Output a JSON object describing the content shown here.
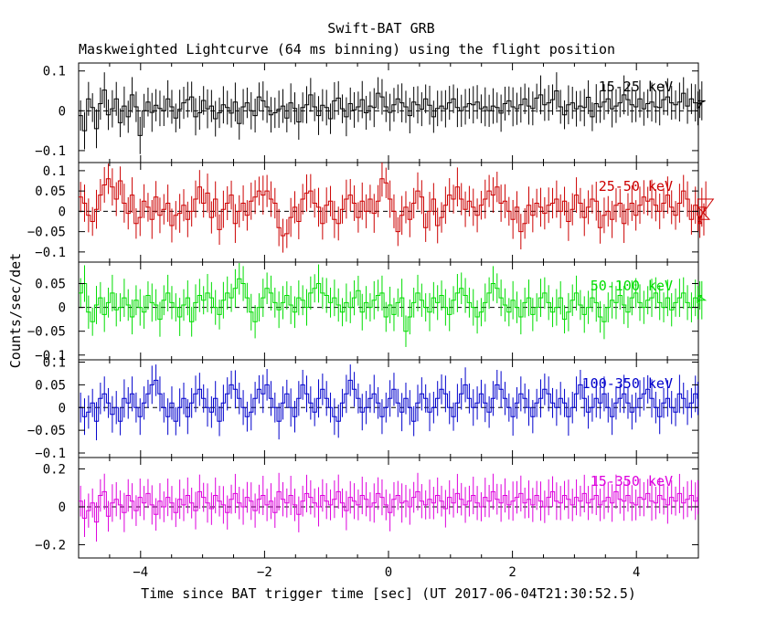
{
  "chart_data": {
    "type": "line",
    "title": "Swift-BAT GRB",
    "subtitle": "Maskweighted Lightcurve (64 ms binning) using the flight position",
    "xlabel": "Time since BAT trigger time [sec] (UT 2017-06-04T21:30:52.5)",
    "ylabel": "Counts/sec/det",
    "xlim": [
      -5,
      5
    ],
    "xticks": [
      -4,
      -2,
      0,
      2,
      4
    ],
    "xtick_labels": [
      "−4",
      "−2",
      "0",
      "2",
      "4"
    ],
    "bin_width_sec": 0.064,
    "panels": [
      {
        "band": "15-25 keV",
        "color": "#000000",
        "ylim": [
          -0.13,
          0.12
        ],
        "yticks": [
          0.1,
          0,
          -0.1
        ],
        "ytick_labels": [
          "0.1",
          "0",
          "−0.1"
        ],
        "values": [
          -0.012,
          -0.05,
          0.03,
          0.008,
          -0.045,
          0.018,
          0.052,
          -0.01,
          0.005,
          0.03,
          -0.03,
          0.012,
          -0.015,
          0.04,
          0.01,
          -0.062,
          0.0,
          0.022,
          -0.004,
          0.014,
          0.006,
          0.0,
          0.03,
          0.01,
          -0.018,
          0.004,
          0.02,
          0.028,
          0.035,
          -0.015,
          -0.005,
          0.026,
          0.005,
          0.012,
          -0.02,
          -0.005,
          0.015,
          0.008,
          -0.006,
          0.022,
          -0.032,
          0.01,
          0.02,
          0.0,
          -0.012,
          0.035,
          0.025,
          0.01,
          -0.01,
          -0.005,
          0.004,
          0.012,
          -0.018,
          0.02,
          0.006,
          -0.028,
          0.008,
          0.015,
          0.04,
          0.01,
          -0.012,
          0.014,
          0.008,
          -0.02,
          0.025,
          0.032,
          0.005,
          -0.015,
          0.018,
          0.002,
          0.01,
          0.028,
          -0.005,
          0.012,
          0.008,
          0.044,
          0.035,
          0.01,
          -0.004,
          0.015,
          0.03,
          0.02,
          0.01,
          -0.012,
          0.022,
          0.015,
          0.004,
          0.03,
          0.014,
          -0.015,
          0.006,
          0.012,
          0.005,
          0.02,
          0.03,
          0.008,
          0.0,
          0.01,
          0.018,
          0.015,
          0.022,
          0.005,
          0.01,
          0.0,
          0.012,
          0.008,
          -0.006,
          0.018,
          0.025,
          0.01,
          0.005,
          0.015,
          0.03,
          0.012,
          0.006,
          0.032,
          0.04,
          0.015,
          0.02,
          0.028,
          0.05,
          0.01,
          -0.01,
          0.015,
          0.02,
          0.005,
          0.012,
          0.008,
          0.034,
          -0.015,
          0.018,
          0.01,
          0.022,
          0.03,
          0.005,
          0.012,
          0.02,
          0.04,
          0.028,
          0.015,
          0.01,
          0.03,
          0.005,
          0.018,
          0.022,
          0.01,
          0.008,
          0.028,
          0.035,
          0.02,
          0.015,
          0.022,
          0.044,
          0.012,
          0.03,
          0.02,
          0.006,
          0.018,
          0.025
        ]
      },
      {
        "band": "25-50 keV",
        "color": "#cc0000",
        "ylim": [
          -0.125,
          0.12
        ],
        "yticks": [
          0.1,
          0.05,
          0,
          -0.05,
          -0.1
        ],
        "ytick_labels": [
          "0.1",
          "0.05",
          "0",
          "−0.05",
          "−0.1"
        ],
        "values": [
          0.035,
          0.02,
          -0.01,
          -0.025,
          0.005,
          0.04,
          0.065,
          0.08,
          0.06,
          0.03,
          0.075,
          0.02,
          -0.005,
          0.04,
          -0.03,
          -0.015,
          0.025,
          0.01,
          -0.02,
          0.035,
          -0.01,
          0.005,
          0.02,
          -0.035,
          -0.01,
          -0.005,
          0.015,
          -0.02,
          0.0,
          0.03,
          0.06,
          0.02,
          0.045,
          -0.015,
          0.03,
          -0.045,
          0.005,
          0.02,
          0.04,
          -0.03,
          0.0,
          0.02,
          -0.01,
          0.025,
          0.035,
          0.05,
          0.04,
          0.05,
          0.03,
          0.02,
          -0.04,
          -0.06,
          -0.055,
          -0.015,
          0.01,
          -0.025,
          0.03,
          0.045,
          0.05,
          0.02,
          0.01,
          -0.03,
          0.015,
          0.025,
          -0.02,
          -0.03,
          0.005,
          0.03,
          0.04,
          0.02,
          -0.015,
          0.025,
          0.0,
          0.03,
          -0.005,
          0.025,
          0.08,
          0.07,
          0.03,
          0.0,
          -0.05,
          -0.01,
          0.01,
          -0.02,
          0.02,
          0.05,
          0.035,
          -0.04,
          0.0,
          0.03,
          -0.035,
          -0.015,
          0.015,
          0.04,
          0.03,
          0.06,
          0.03,
          0.005,
          0.025,
          0.01,
          -0.01,
          0.015,
          0.03,
          0.05,
          0.04,
          0.06,
          0.02,
          0.025,
          0.0,
          -0.02,
          0.01,
          -0.05,
          -0.03,
          0.015,
          -0.01,
          0.02,
          0.01,
          -0.005,
          0.015,
          0.02,
          0.03,
          0.0,
          0.025,
          -0.025,
          0.005,
          0.04,
          0.02,
          -0.015,
          0.01,
          0.03,
          0.025,
          -0.04,
          -0.01,
          0.0,
          -0.02,
          0.015,
          0.02,
          -0.03,
          0.005,
          0.02,
          -0.01,
          0.015,
          0.035,
          0.025,
          0.03,
          0.015,
          0.0,
          0.02,
          0.04,
          0.01,
          -0.01,
          0.02,
          0.05,
          0.03,
          -0.02,
          0.015,
          -0.01,
          -0.03,
          0.01,
          -0.02,
          0.03
        ]
      },
      {
        "band": "50-100 keV",
        "color": "#00dd00",
        "ylim": [
          -0.11,
          0.095
        ],
        "yticks": [
          0.05,
          0,
          -0.05,
          -0.1
        ],
        "ytick_labels": [
          "0.05",
          "0",
          "−0.05",
          "−0.1"
        ],
        "values": [
          0.03,
          0.05,
          -0.01,
          -0.03,
          0.005,
          0.02,
          -0.015,
          0.01,
          0.03,
          -0.005,
          0.0,
          0.02,
          0.005,
          -0.02,
          0.015,
          0.0,
          -0.01,
          0.025,
          0.01,
          0.005,
          -0.025,
          0.015,
          0.03,
          0.01,
          0.0,
          -0.02,
          0.005,
          0.02,
          -0.03,
          0.01,
          0.025,
          0.015,
          0.03,
          0.02,
          0.0,
          -0.015,
          0.015,
          0.03,
          0.02,
          0.04,
          0.06,
          0.05,
          0.02,
          -0.01,
          -0.03,
          0.0,
          0.02,
          0.04,
          0.03,
          0.01,
          -0.005,
          0.01,
          0.025,
          0.005,
          -0.01,
          0.02,
          0.015,
          0.0,
          0.03,
          0.04,
          0.05,
          0.03,
          0.025,
          0.01,
          0.02,
          0.005,
          -0.01,
          0.01,
          0.0,
          0.02,
          0.035,
          -0.01,
          0.01,
          0.0,
          0.015,
          0.025,
          0.03,
          -0.02,
          0.005,
          -0.015,
          0.01,
          0.02,
          -0.05,
          -0.02,
          0.01,
          0.03,
          0.015,
          0.0,
          -0.01,
          0.02,
          0.01,
          0.025,
          0.0,
          -0.015,
          0.015,
          0.03,
          0.04,
          0.025,
          0.01,
          0.0,
          -0.02,
          -0.01,
          0.01,
          0.03,
          0.05,
          0.04,
          0.02,
          0.005,
          -0.01,
          0.015,
          0.0,
          -0.02,
          0.01,
          0.02,
          -0.015,
          0.0,
          0.02,
          0.03,
          0.01,
          -0.01,
          0.0,
          0.02,
          -0.025,
          -0.01,
          0.015,
          0.03,
          0.005,
          -0.015,
          0.0,
          0.02,
          0.01,
          -0.02,
          -0.03,
          0.0,
          0.015,
          0.01,
          0.025,
          0.005,
          -0.01,
          0.02,
          0.03,
          0.01,
          0.0,
          0.015,
          0.02,
          0.03,
          0.01,
          0.0,
          0.02,
          -0.005,
          0.01,
          0.02,
          0.03,
          0.01,
          0.0,
          0.02,
          0.01,
          0.025,
          0.015
        ]
      },
      {
        "band": "100-350 keV",
        "color": "#0000cc",
        "ylim": [
          -0.11,
          0.105
        ],
        "yticks": [
          0.1,
          0.05,
          0,
          -0.05,
          -0.1
        ],
        "ytick_labels": [
          "0.1",
          "0.05",
          "0",
          "−0.05",
          "−0.1"
        ],
        "values": [
          0.0,
          -0.02,
          -0.01,
          0.01,
          -0.03,
          0.02,
          0.03,
          0.01,
          -0.015,
          0.0,
          -0.03,
          0.02,
          0.01,
          0.03,
          0.0,
          -0.02,
          0.01,
          0.03,
          0.05,
          0.06,
          0.03,
          0.0,
          -0.02,
          0.01,
          -0.03,
          0.0,
          0.02,
          -0.02,
          0.01,
          0.03,
          0.04,
          0.02,
          0.0,
          -0.01,
          0.02,
          -0.03,
          0.01,
          0.03,
          0.05,
          0.04,
          0.02,
          0.0,
          -0.02,
          -0.01,
          0.02,
          0.04,
          0.03,
          0.05,
          0.02,
          0.0,
          -0.03,
          0.01,
          0.03,
          0.0,
          -0.02,
          0.02,
          0.05,
          0.03,
          0.01,
          -0.01,
          0.02,
          0.04,
          0.02,
          0.0,
          -0.02,
          -0.03,
          0.01,
          0.03,
          0.06,
          0.04,
          0.02,
          -0.01,
          0.0,
          0.02,
          0.03,
          0.01,
          -0.02,
          0.0,
          0.02,
          0.04,
          0.01,
          -0.01,
          0.02,
          0.0,
          -0.03,
          0.01,
          0.03,
          0.02,
          -0.01,
          0.0,
          0.02,
          0.04,
          0.03,
          0.0,
          -0.02,
          0.01,
          0.03,
          0.05,
          0.02,
          0.0,
          0.01,
          0.03,
          0.01,
          -0.01,
          0.02,
          0.05,
          0.04,
          0.02,
          0.0,
          -0.02,
          0.01,
          0.03,
          0.02,
          0.0,
          -0.02,
          0.01,
          0.02,
          0.04,
          0.03,
          0.01,
          0.0,
          0.02,
          0.01,
          -0.02,
          0.0,
          0.03,
          0.05,
          0.02,
          -0.01,
          0.0,
          0.02,
          0.01,
          0.03,
          0.0,
          -0.02,
          0.01,
          0.02,
          0.03,
          0.01,
          -0.01,
          0.0,
          0.02,
          0.03,
          0.04,
          0.02,
          0.0,
          -0.02,
          0.01,
          0.02,
          0.0,
          -0.01,
          0.03,
          0.02,
          0.0,
          0.01,
          0.03,
          0.02
        ]
      },
      {
        "band": "15-350 keV",
        "color": "#dd00dd",
        "ylim": [
          -0.27,
          0.26
        ],
        "yticks": [
          0.2,
          0,
          -0.2
        ],
        "ytick_labels": [
          "0.2",
          "0",
          "−0.2"
        ],
        "values": [
          0.03,
          -0.06,
          -0.02,
          0.02,
          -0.08,
          0.06,
          0.08,
          -0.05,
          0.02,
          0.04,
          0.01,
          -0.03,
          0.06,
          0.03,
          -0.02,
          0.05,
          0.02,
          0.07,
          0.01,
          -0.04,
          0.03,
          0.0,
          0.05,
          0.02,
          -0.03,
          0.04,
          0.01,
          0.06,
          0.02,
          -0.02,
          0.08,
          0.05,
          0.02,
          -0.01,
          0.06,
          0.03,
          0.01,
          -0.03,
          0.04,
          0.07,
          0.02,
          0.0,
          0.05,
          0.03,
          -0.02,
          0.04,
          0.06,
          0.01,
          0.03,
          -0.03,
          0.08,
          0.04,
          0.02,
          0.06,
          0.01,
          -0.04,
          0.03,
          0.07,
          0.05,
          0.02,
          0.0,
          0.06,
          0.03,
          0.01,
          0.04,
          0.08,
          0.02,
          -0.02,
          0.05,
          0.03,
          0.01,
          0.06,
          0.04,
          0.0,
          0.02,
          0.07,
          0.05,
          0.01,
          -0.03,
          0.04,
          0.06,
          0.02,
          0.03,
          0.0,
          0.05,
          0.08,
          0.03,
          0.01,
          0.04,
          0.02,
          0.06,
          0.03,
          -0.01,
          0.05,
          0.02,
          0.07,
          0.04,
          0.01,
          0.03,
          0.06,
          0.02,
          0.0,
          0.05,
          0.03,
          0.08,
          0.04,
          0.02,
          0.06,
          0.01,
          0.03,
          0.05,
          0.07,
          0.02,
          0.04,
          0.01,
          0.06,
          0.03,
          0.0,
          0.05,
          0.08,
          0.03,
          0.02,
          0.06,
          0.04,
          0.01,
          0.05,
          0.03,
          0.07,
          0.02,
          0.04,
          0.06,
          0.01,
          0.03,
          0.05,
          0.02,
          0.08,
          0.04,
          0.03,
          0.06,
          0.02,
          0.01,
          0.05,
          0.04,
          0.07,
          0.03,
          0.02,
          0.06,
          0.04,
          0.01,
          0.05,
          0.03,
          0.07,
          0.02,
          0.04,
          0.06,
          0.03,
          0.05
        ]
      }
    ]
  }
}
